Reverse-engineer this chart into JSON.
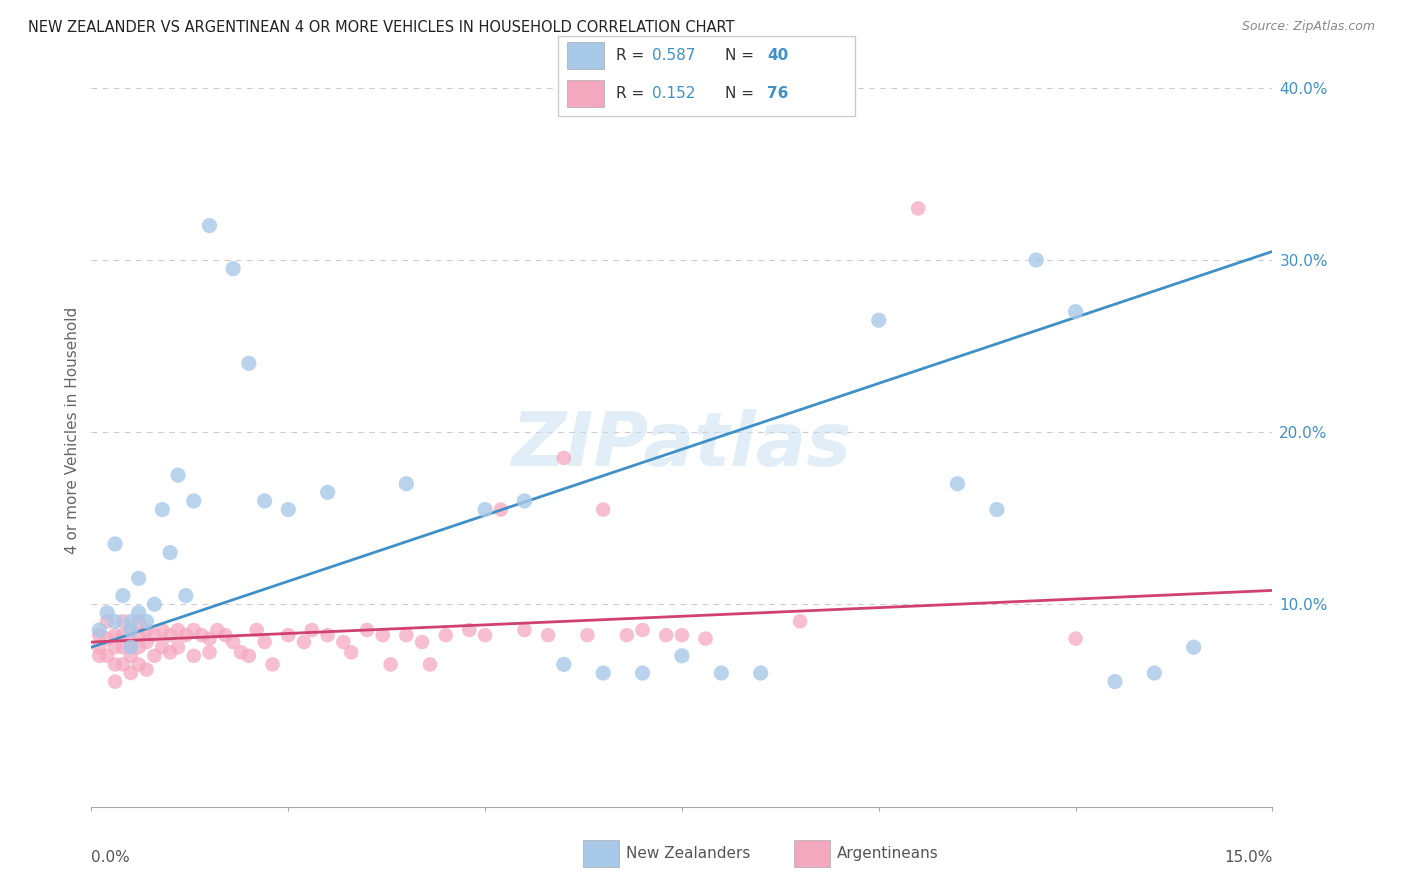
{
  "title": "NEW ZEALANDER VS ARGENTINEAN 4 OR MORE VEHICLES IN HOUSEHOLD CORRELATION CHART",
  "source": "Source: ZipAtlas.com",
  "ylabel": "4 or more Vehicles in Household",
  "xmin": 0.0,
  "xmax": 0.15,
  "ymin": -0.018,
  "ymax": 0.42,
  "nz_R": "0.587",
  "nz_N": "40",
  "arg_R": "0.152",
  "arg_N": "76",
  "nz_scatter_color": "#a8c8e8",
  "arg_scatter_color": "#f4a8c0",
  "nz_line_color": "#4090c8",
  "arg_line_color": "#d04070",
  "nz_line_y0": 0.075,
  "nz_line_y1": 0.305,
  "arg_line_y0": 0.078,
  "arg_line_y1": 0.108,
  "gridline_color": "#cccccc",
  "right_ytick_color": "#4090c8",
  "watermark_text": "ZIPatlas",
  "legend_text_color": "#333333",
  "legend_num_color": "#4090c8",
  "nz_x": [
    0.001,
    0.002,
    0.003,
    0.003,
    0.004,
    0.005,
    0.005,
    0.005,
    0.006,
    0.006,
    0.007,
    0.008,
    0.009,
    0.01,
    0.011,
    0.012,
    0.013,
    0.015,
    0.018,
    0.02,
    0.022,
    0.025,
    0.03,
    0.04,
    0.05,
    0.055,
    0.06,
    0.065,
    0.07,
    0.075,
    0.08,
    0.085,
    0.1,
    0.11,
    0.115,
    0.12,
    0.125,
    0.13,
    0.135,
    0.14
  ],
  "nz_y": [
    0.085,
    0.095,
    0.09,
    0.135,
    0.105,
    0.085,
    0.09,
    0.075,
    0.095,
    0.115,
    0.09,
    0.1,
    0.155,
    0.13,
    0.175,
    0.105,
    0.16,
    0.32,
    0.295,
    0.24,
    0.16,
    0.155,
    0.165,
    0.17,
    0.155,
    0.16,
    0.065,
    0.06,
    0.06,
    0.07,
    0.06,
    0.06,
    0.265,
    0.17,
    0.155,
    0.3,
    0.27,
    0.055,
    0.06,
    0.075
  ],
  "arg_x": [
    0.001,
    0.001,
    0.001,
    0.002,
    0.002,
    0.002,
    0.003,
    0.003,
    0.003,
    0.003,
    0.004,
    0.004,
    0.004,
    0.004,
    0.005,
    0.005,
    0.005,
    0.005,
    0.006,
    0.006,
    0.006,
    0.006,
    0.007,
    0.007,
    0.007,
    0.008,
    0.008,
    0.009,
    0.009,
    0.01,
    0.01,
    0.011,
    0.011,
    0.012,
    0.013,
    0.013,
    0.014,
    0.015,
    0.015,
    0.016,
    0.017,
    0.018,
    0.019,
    0.02,
    0.021,
    0.022,
    0.023,
    0.025,
    0.027,
    0.028,
    0.03,
    0.032,
    0.033,
    0.035,
    0.037,
    0.038,
    0.04,
    0.042,
    0.043,
    0.045,
    0.048,
    0.05,
    0.052,
    0.055,
    0.058,
    0.06,
    0.063,
    0.065,
    0.068,
    0.07,
    0.073,
    0.075,
    0.078,
    0.09,
    0.105,
    0.125
  ],
  "arg_y": [
    0.082,
    0.075,
    0.07,
    0.09,
    0.08,
    0.07,
    0.082,
    0.075,
    0.065,
    0.055,
    0.09,
    0.082,
    0.075,
    0.065,
    0.085,
    0.078,
    0.07,
    0.06,
    0.09,
    0.082,
    0.075,
    0.065,
    0.085,
    0.078,
    0.062,
    0.082,
    0.07,
    0.085,
    0.075,
    0.082,
    0.072,
    0.085,
    0.075,
    0.082,
    0.085,
    0.07,
    0.082,
    0.08,
    0.072,
    0.085,
    0.082,
    0.078,
    0.072,
    0.07,
    0.085,
    0.078,
    0.065,
    0.082,
    0.078,
    0.085,
    0.082,
    0.078,
    0.072,
    0.085,
    0.082,
    0.065,
    0.082,
    0.078,
    0.065,
    0.082,
    0.085,
    0.082,
    0.155,
    0.085,
    0.082,
    0.185,
    0.082,
    0.155,
    0.082,
    0.085,
    0.082,
    0.082,
    0.08,
    0.09,
    0.33,
    0.08
  ]
}
